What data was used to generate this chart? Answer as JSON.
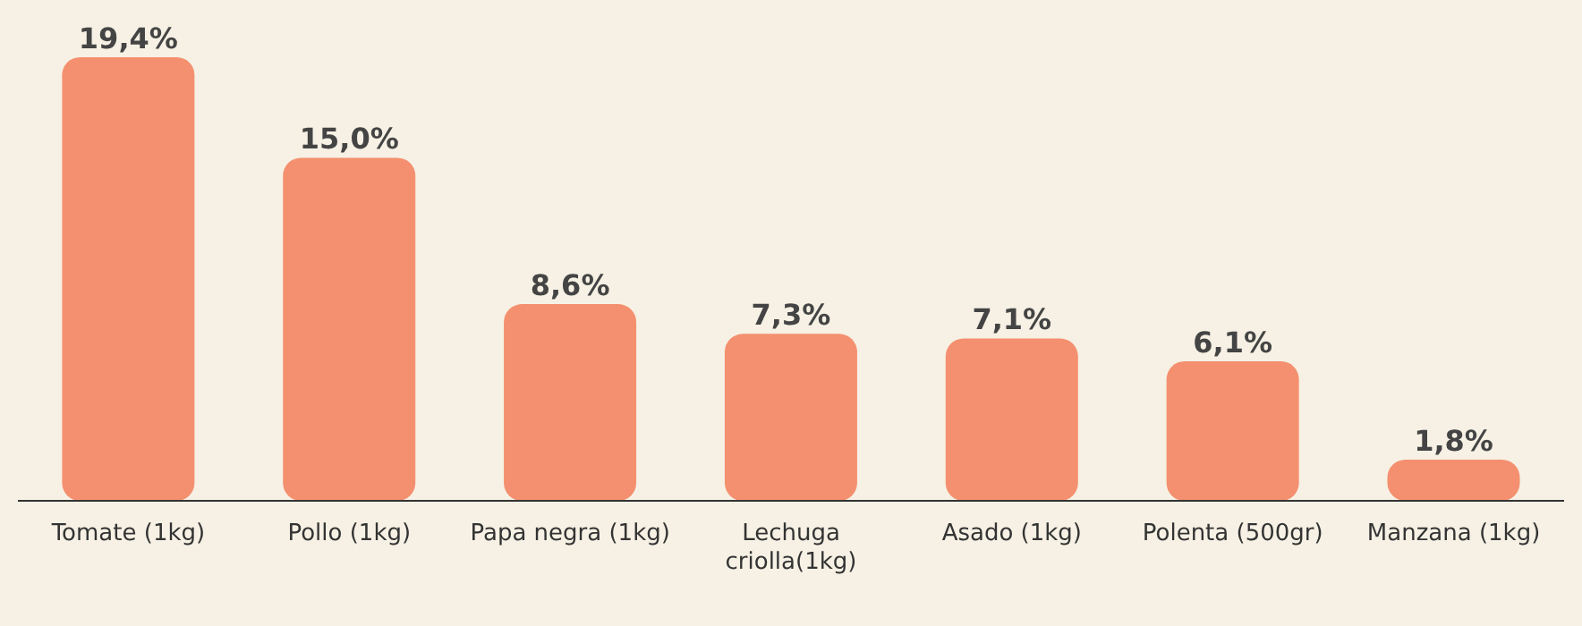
{
  "chart_data": {
    "type": "bar",
    "categories": [
      "Tomate (1kg)",
      "Pollo (1kg)",
      "Papa negra (1kg)",
      "Lechuga criolla(1kg)",
      "Asado (1kg)",
      "Polenta (500gr)",
      "Manzana (1kg)"
    ],
    "values": [
      19.4,
      15.0,
      8.6,
      7.3,
      7.1,
      6.1,
      1.8
    ],
    "value_labels": [
      "19,4%",
      "15,0%",
      "8,6%",
      "7,3%",
      "7,1%",
      "6,1%",
      "1,8%"
    ],
    "color": "#f4906f"
  }
}
